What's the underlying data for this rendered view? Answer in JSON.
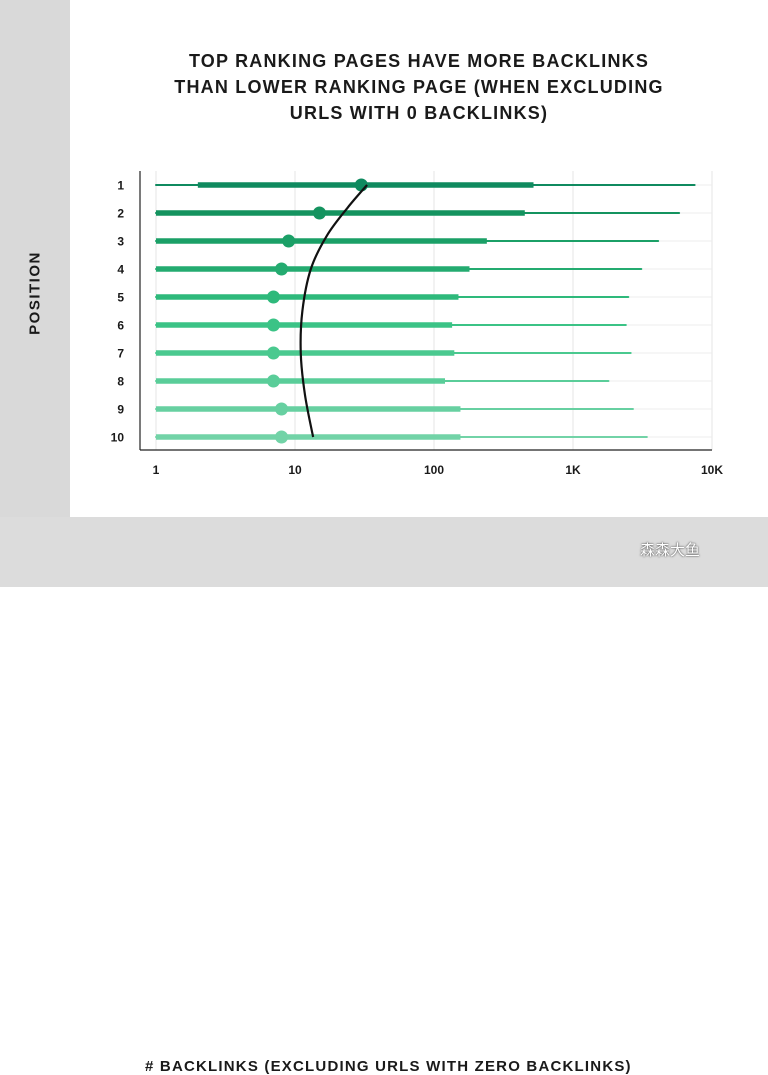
{
  "chart_data": {
    "type": "range-dot",
    "title_lines": [
      "TOP RANKING PAGES HAVE MORE BACKLINKS",
      "THAN LOWER RANKING PAGE (WHEN EXCLUDING",
      "URLS WITH 0 BACKLINKS)"
    ],
    "ylabel": "POSITION",
    "xlabel": "# BACKLINKS (EXCLUDING URLS WITH ZERO BACKLINKS)",
    "x_scale": "log",
    "xlim": [
      1,
      10000
    ],
    "x_ticks": [
      {
        "value": 1,
        "label": "1"
      },
      {
        "value": 10,
        "label": "10"
      },
      {
        "value": 100,
        "label": "100"
      },
      {
        "value": 1000,
        "label": "1K"
      },
      {
        "value": 10000,
        "label": "10K"
      }
    ],
    "categories": [
      "1",
      "2",
      "3",
      "4",
      "5",
      "6",
      "7",
      "8",
      "9",
      "10"
    ],
    "series": [
      {
        "position": "1",
        "min": 1,
        "q1": 2.0,
        "median": 30,
        "q3": 520,
        "max": 7500,
        "color": "#0f8a5f"
      },
      {
        "position": "2",
        "min": 1,
        "q1": 1,
        "median": 15,
        "q3": 450,
        "max": 5800,
        "color": "#14935f"
      },
      {
        "position": "3",
        "min": 1,
        "q1": 1,
        "median": 9,
        "q3": 240,
        "max": 4100,
        "color": "#1ba067"
      },
      {
        "position": "4",
        "min": 1,
        "q1": 1,
        "median": 8,
        "q3": 180,
        "max": 3100,
        "color": "#24ab70"
      },
      {
        "position": "5",
        "min": 1,
        "q1": 1,
        "median": 7,
        "q3": 150,
        "max": 2500,
        "color": "#2eb97b"
      },
      {
        "position": "6",
        "min": 1,
        "q1": 1,
        "median": 7,
        "q3": 135,
        "max": 2400,
        "color": "#3bc386"
      },
      {
        "position": "7",
        "min": 1,
        "q1": 1,
        "median": 7,
        "q3": 140,
        "max": 2600,
        "color": "#4ac98f"
      },
      {
        "position": "8",
        "min": 1,
        "q1": 1,
        "median": 7,
        "q3": 120,
        "max": 1800,
        "color": "#5acd99"
      },
      {
        "position": "9",
        "min": 1,
        "q1": 1,
        "median": 8,
        "q3": 155,
        "max": 2700,
        "color": "#67d0a1"
      },
      {
        "position": "10",
        "min": 1,
        "q1": 1,
        "median": 8,
        "q3": 155,
        "max": 3400,
        "color": "#72d3a7"
      }
    ],
    "trend_curve": {
      "color": "#111111",
      "points": [
        {
          "position": 1.0,
          "value": 33
        },
        {
          "position": 1.8,
          "value": 24
        },
        {
          "position": 2.8,
          "value": 17
        },
        {
          "position": 4.0,
          "value": 13
        },
        {
          "position": 5.5,
          "value": 11.3
        },
        {
          "position": 7.0,
          "value": 11.0
        },
        {
          "position": 8.5,
          "value": 11.8
        },
        {
          "position": 10.0,
          "value": 13.5
        }
      ]
    },
    "grid": true
  },
  "watermark": "森森大鱼"
}
